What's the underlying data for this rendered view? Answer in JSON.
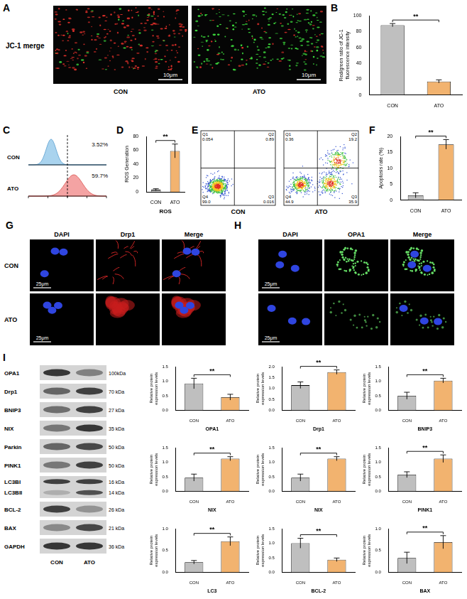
{
  "chart_data": [
    {
      "panel": "B",
      "type": "bar",
      "categories": [
        "CON",
        "ATO"
      ],
      "values": [
        88,
        17
      ],
      "errors": [
        2,
        2
      ],
      "colors": [
        "#bfbfbf",
        "#f2b36f"
      ],
      "ylabel": "Red/green ratio of JC-1 fluorescence intensity",
      "ylim": [
        0,
        100
      ],
      "yticks": [
        0,
        20,
        40,
        60,
        80,
        100
      ],
      "grid": false,
      "significance": "**"
    },
    {
      "panel": "D",
      "type": "bar",
      "categories": [
        "CON",
        "ATO"
      ],
      "values": [
        3,
        59
      ],
      "errors": [
        1.5,
        10
      ],
      "colors": [
        "#bfbfbf",
        "#f2b36f"
      ],
      "ylabel": "ROS Generation",
      "xlabel": "ROS",
      "ylim": [
        0,
        80
      ],
      "yticks": [
        0,
        20,
        40,
        60,
        80
      ],
      "grid": false,
      "significance": "**"
    },
    {
      "panel": "F",
      "type": "bar",
      "categories": [
        "CON",
        "ATO"
      ],
      "values": [
        1.5,
        17.5
      ],
      "errors": [
        0.8,
        1.5
      ],
      "colors": [
        "#bfbfbf",
        "#f2b36f"
      ],
      "ylabel": "Apoptosis rate (%)",
      "ylim": [
        0,
        20
      ],
      "yticks": [
        0,
        5,
        10,
        15,
        20
      ],
      "grid": false,
      "significance": "**"
    },
    {
      "type": "bar",
      "categories": [
        "CON",
        "ATO"
      ],
      "values": [
        0.92,
        0.45
      ],
      "errors": [
        0.18,
        0.1
      ],
      "colors": [
        "#bfbfbf",
        "#f2b36f"
      ],
      "ylabel": "Relative protein expression levels",
      "xlabel": "OPA1",
      "ylim": [
        0,
        1.5
      ],
      "yticks": [
        {
          "value": 0,
          "label": "0.0"
        },
        0.5,
        {
          "value": 1,
          "label": "1.0"
        },
        1.5
      ],
      "grid": false,
      "significance": "**"
    },
    {
      "type": "bar",
      "categories": [
        "CON",
        "ATO"
      ],
      "values": [
        1.15,
        1.75
      ],
      "errors": [
        0.15,
        0.1
      ],
      "colors": [
        "#bfbfbf",
        "#f2b36f"
      ],
      "ylabel": "Relative protein expression levels",
      "xlabel": "Drp1",
      "ylim": [
        0,
        2
      ],
      "yticks": [
        {
          "value": 0,
          "label": "0.0"
        },
        0.5,
        {
          "value": 1,
          "label": "1.0"
        },
        1.5,
        {
          "value": 2,
          "label": "2.0"
        }
      ],
      "grid": false,
      "significance": "**"
    },
    {
      "type": "bar",
      "categories": [
        "CON",
        "ATO"
      ],
      "values": [
        0.5,
        1.02
      ],
      "errors": [
        0.12,
        0.08
      ],
      "colors": [
        "#bfbfbf",
        "#f2b36f"
      ],
      "ylabel": "Relative protein expression levels",
      "xlabel": "BNIP3",
      "ylim": [
        0,
        1.5
      ],
      "yticks": [
        {
          "value": 0,
          "label": "0.0"
        },
        0.5,
        {
          "value": 1,
          "label": "1.0"
        },
        1.5
      ],
      "grid": false,
      "significance": "**"
    },
    {
      "type": "bar",
      "categories": [
        "CON",
        "ATO"
      ],
      "values": [
        0.47,
        1.12
      ],
      "errors": [
        0.12,
        0.07
      ],
      "colors": [
        "#bfbfbf",
        "#f2b36f"
      ],
      "ylabel": "Relative protein expression levels",
      "xlabel": "NIX",
      "ylim": [
        0,
        1.5
      ],
      "yticks": [
        {
          "value": 0,
          "label": "0.0"
        },
        0.5,
        {
          "value": 1,
          "label": "1.0"
        },
        1.5
      ],
      "grid": false,
      "significance": "**"
    },
    {
      "type": "bar",
      "categories": [
        "CON",
        "ATO"
      ],
      "values": [
        0.47,
        1.12
      ],
      "errors": [
        0.12,
        0.07
      ],
      "colors": [
        "#bfbfbf",
        "#f2b36f"
      ],
      "ylabel": "Relative protein expression levels",
      "xlabel": "NIX",
      "ylim": [
        0,
        1.5
      ],
      "yticks": [
        {
          "value": 0,
          "label": "0.0"
        },
        0.5,
        {
          "value": 1,
          "label": "1.0"
        },
        1.5
      ],
      "grid": false,
      "significance": "**"
    },
    {
      "type": "bar",
      "categories": [
        "CON",
        "ATO"
      ],
      "values": [
        0.57,
        1.12
      ],
      "errors": [
        0.1,
        0.13
      ],
      "colors": [
        "#bfbfbf",
        "#f2b36f"
      ],
      "ylabel": "Relative protein expression levels",
      "xlabel": "PINK1",
      "ylim": [
        0,
        1.5
      ],
      "yticks": [
        {
          "value": 0,
          "label": "0.0"
        },
        0.5,
        {
          "value": 1,
          "label": "1.0"
        },
        1.5
      ],
      "grid": false,
      "significance": "**"
    },
    {
      "type": "bar",
      "categories": [
        "CON",
        "ATO"
      ],
      "values": [
        0.23,
        0.71
      ],
      "errors": [
        0.04,
        0.1
      ],
      "colors": [
        "#bfbfbf",
        "#f2b36f"
      ],
      "ylabel": "Relative protein expression levels",
      "xlabel": "LC3",
      "ylim": [
        0,
        1
      ],
      "yticks": [
        {
          "value": 0,
          "label": "0.0"
        },
        0.5,
        {
          "value": 1,
          "label": "1.0"
        }
      ],
      "grid": false,
      "significance": "**"
    },
    {
      "type": "bar",
      "categories": [
        "CON",
        "ATO"
      ],
      "values": [
        1.0,
        0.43
      ],
      "errors": [
        0.17,
        0.06
      ],
      "colors": [
        "#bfbfbf",
        "#f2b36f"
      ],
      "ylabel": "Relative protein expression levels",
      "xlabel": "BCL-2",
      "ylim": [
        0,
        1.5
      ],
      "yticks": [
        {
          "value": 0,
          "label": "0.0"
        },
        0.5,
        {
          "value": 1,
          "label": "1.0"
        },
        1.5
      ],
      "grid": false,
      "significance": "**"
    },
    {
      "type": "bar",
      "categories": [
        "CON",
        "ATO"
      ],
      "values": [
        0.33,
        0.69
      ],
      "errors": [
        0.13,
        0.15
      ],
      "colors": [
        "#bfbfbf",
        "#f2b36f"
      ],
      "ylabel": "Relative protein expression levels",
      "xlabel": "BAX",
      "ylim": [
        0,
        1
      ],
      "yticks": [
        {
          "value": 0,
          "label": "0.0"
        },
        0.5,
        {
          "value": 1,
          "label": "1.0"
        }
      ],
      "grid": false,
      "significance": "**"
    }
  ],
  "images": {
    "A": {
      "row_label": "JC-1 merge",
      "groups": [
        "CON",
        "ATO"
      ],
      "scale_bar": "10μm"
    },
    "C": {
      "groups": [
        "CON",
        "ATO"
      ],
      "percentages": [
        "3.52%",
        "59.7%"
      ]
    },
    "E": {
      "plots": [
        {
          "label": "CON",
          "quadrants": [
            {
              "name": "Q1",
              "value": "0.054"
            },
            {
              "name": "Q2",
              "value": "0.89"
            },
            {
              "name": "Q3",
              "value": "0.016"
            },
            {
              "name": "Q4",
              "value": "99.0"
            }
          ]
        },
        {
          "label": "ATO",
          "quadrants": [
            {
              "name": "Q1",
              "value": "0.36"
            },
            {
              "name": "Q2",
              "value": "19.2"
            },
            {
              "name": "Q3",
              "value": "35.9"
            },
            {
              "name": "Q4",
              "value": "44.9"
            }
          ]
        }
      ]
    },
    "G": {
      "columns": [
        "DAPI",
        "Drp1",
        "Merge"
      ],
      "rows": [
        "CON",
        "ATO"
      ],
      "scale_bar": "25μm"
    },
    "H": {
      "columns": [
        "DAPI",
        "OPA1",
        "Merge"
      ],
      "scale_bar": "25μm"
    },
    "I": {
      "lanes": [
        "CON",
        "ATO"
      ],
      "bands": [
        {
          "names": [
            "OPA1"
          ],
          "kda": [
            "100kDa"
          ]
        },
        {
          "names": [
            "Drp1"
          ],
          "kda": [
            "70 kDa"
          ]
        },
        {
          "names": [
            "BNIP3"
          ],
          "kda": [
            "27 kDa"
          ]
        },
        {
          "names": [
            "NIX"
          ],
          "kda": [
            "35 kDa"
          ]
        },
        {
          "names": [
            "Parkin"
          ],
          "kda": [
            "50 kDa"
          ]
        },
        {
          "names": [
            "PINK1"
          ],
          "kda": [
            "50 kDa"
          ]
        },
        {
          "names": [
            "LC3BI",
            "LC3BII"
          ],
          "kda": [
            "16 kDa",
            "14 kDa"
          ]
        },
        {
          "names": [
            "BCL-2"
          ],
          "kda": [
            "26 kDa"
          ]
        },
        {
          "names": [
            "BAX"
          ],
          "kda": [
            "21 kDa"
          ]
        },
        {
          "names": [
            "GAPDH"
          ],
          "kda": [
            "36 kDa"
          ]
        }
      ]
    }
  }
}
